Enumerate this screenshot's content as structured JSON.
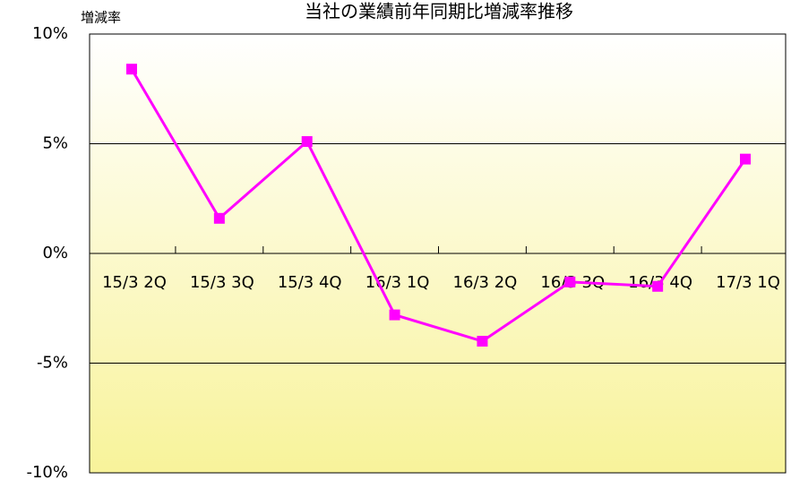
{
  "chart_data": {
    "type": "line",
    "title": "当社の業績前年同期比増減率推移",
    "y_axis_label": "増減率",
    "categories": [
      "15/3 2Q",
      "15/3 3Q",
      "15/3 4Q",
      "16/3 1Q",
      "16/3 2Q",
      "16/3 3Q",
      "16/3 4Q",
      "17/3 1Q"
    ],
    "series": [
      {
        "color": "#ff00ff",
        "values": [
          8.4,
          1.6,
          5.1,
          -2.8,
          -4.0,
          -1.3,
          -1.5,
          4.3
        ]
      }
    ],
    "ylim": [
      -10,
      10
    ],
    "yticks": [
      {
        "value": -10,
        "label": "-10%"
      },
      {
        "value": -5,
        "label": "-5%"
      },
      {
        "value": 0,
        "label": "0%"
      },
      {
        "value": 5,
        "label": "5%"
      },
      {
        "value": 10,
        "label": "10%"
      }
    ],
    "grid": true
  }
}
